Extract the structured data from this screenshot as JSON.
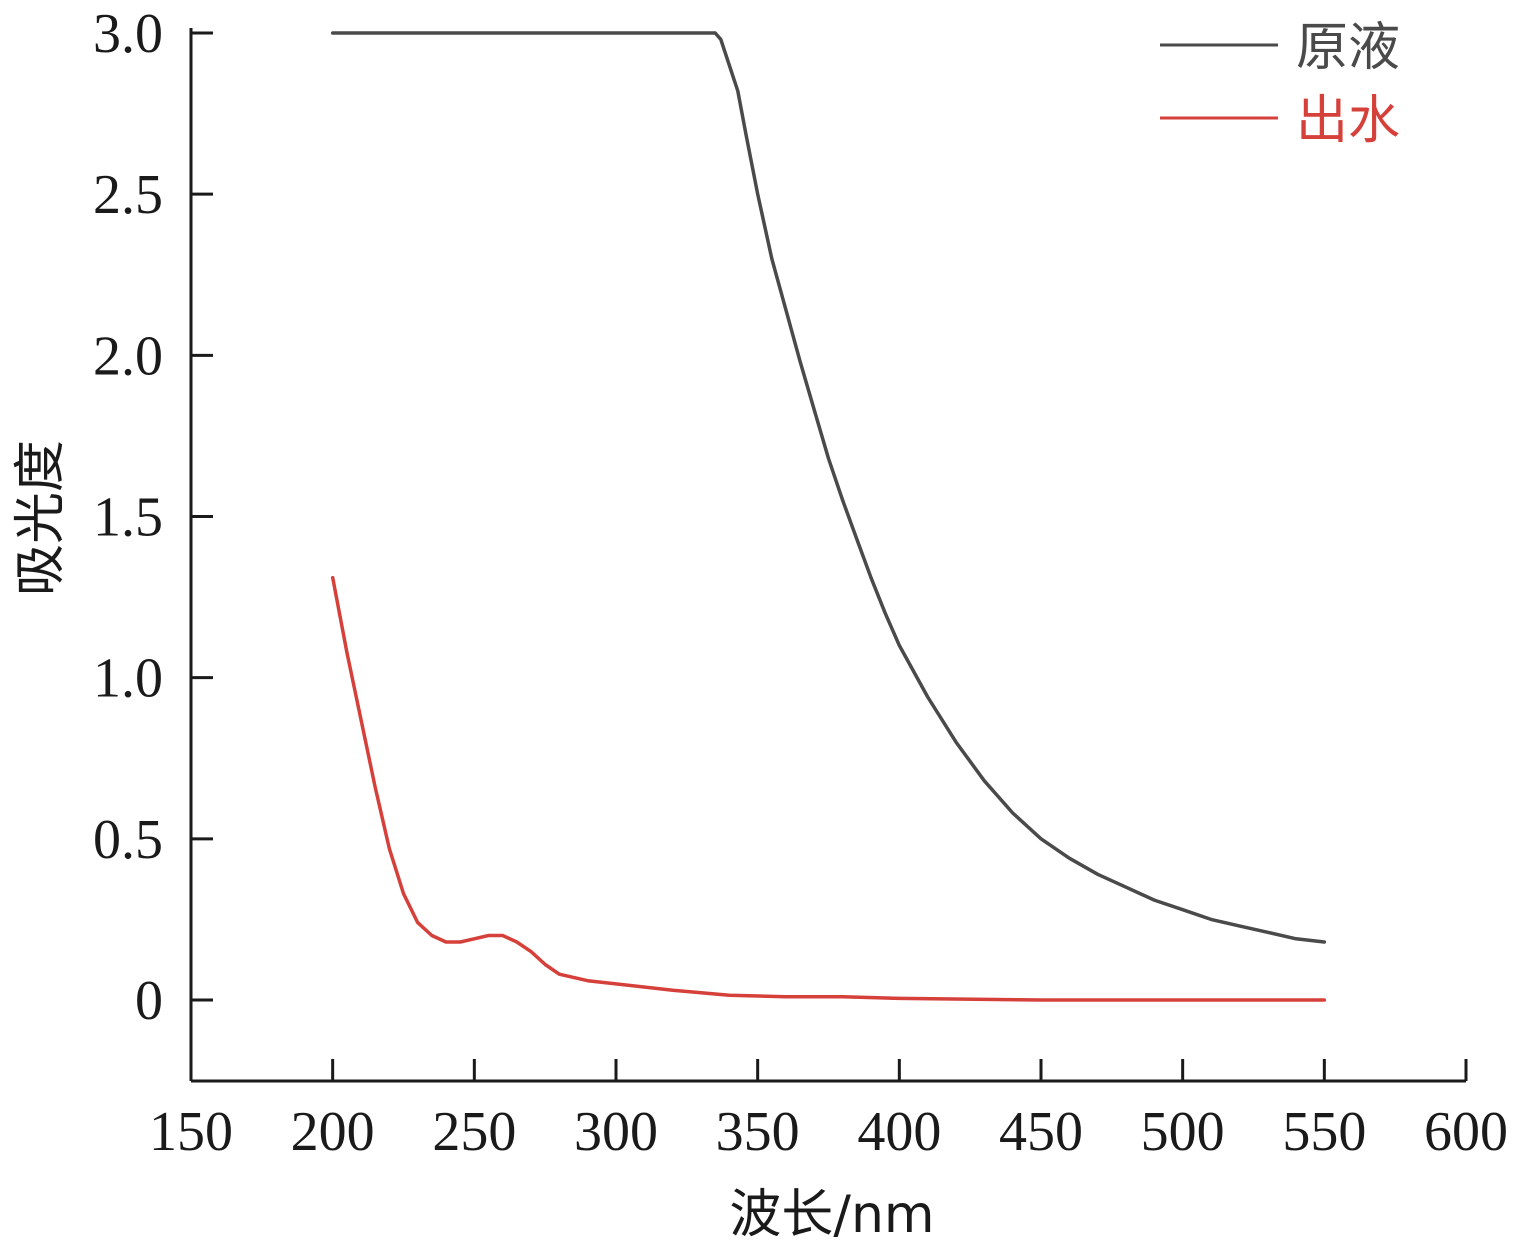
{
  "chart_data": {
    "type": "line",
    "xlabel": "波长/nm",
    "ylabel": "吸光度",
    "xlim": [
      150,
      600
    ],
    "ylim": [
      -0.25,
      3.0
    ],
    "x_ticks": [
      "150",
      "200",
      "250",
      "300",
      "350",
      "400",
      "450",
      "500",
      "550",
      "600"
    ],
    "y_ticks": [
      "0",
      "0.5",
      "1.0",
      "1.5",
      "2.0",
      "2.5",
      "3.0"
    ],
    "grid": false,
    "legend_position": "top-right",
    "series": [
      {
        "name": "原液",
        "color": "#4a4a4a",
        "x": [
          200,
          250,
          300,
          335,
          337,
          340,
          343,
          346,
          350,
          355,
          360,
          365,
          370,
          375,
          380,
          385,
          390,
          395,
          400,
          410,
          420,
          430,
          440,
          450,
          460,
          470,
          480,
          490,
          500,
          510,
          520,
          530,
          540,
          550
        ],
        "y": [
          3.0,
          3.0,
          3.0,
          3.0,
          2.98,
          2.9,
          2.82,
          2.68,
          2.5,
          2.3,
          2.14,
          1.98,
          1.83,
          1.68,
          1.55,
          1.43,
          1.31,
          1.2,
          1.1,
          0.94,
          0.8,
          0.68,
          0.58,
          0.5,
          0.44,
          0.39,
          0.35,
          0.31,
          0.28,
          0.25,
          0.23,
          0.21,
          0.19,
          0.18
        ]
      },
      {
        "name": "出水",
        "color": "#d6403a",
        "x": [
          200,
          205,
          210,
          215,
          220,
          225,
          230,
          235,
          240,
          245,
          250,
          255,
          260,
          265,
          270,
          275,
          280,
          290,
          300,
          320,
          340,
          360,
          380,
          400,
          450,
          500,
          550
        ],
        "y": [
          1.31,
          1.08,
          0.87,
          0.66,
          0.47,
          0.33,
          0.24,
          0.2,
          0.18,
          0.18,
          0.19,
          0.2,
          0.2,
          0.18,
          0.15,
          0.11,
          0.08,
          0.06,
          0.05,
          0.03,
          0.015,
          0.01,
          0.01,
          0.005,
          0.0,
          0.0,
          0.0
        ]
      }
    ]
  }
}
